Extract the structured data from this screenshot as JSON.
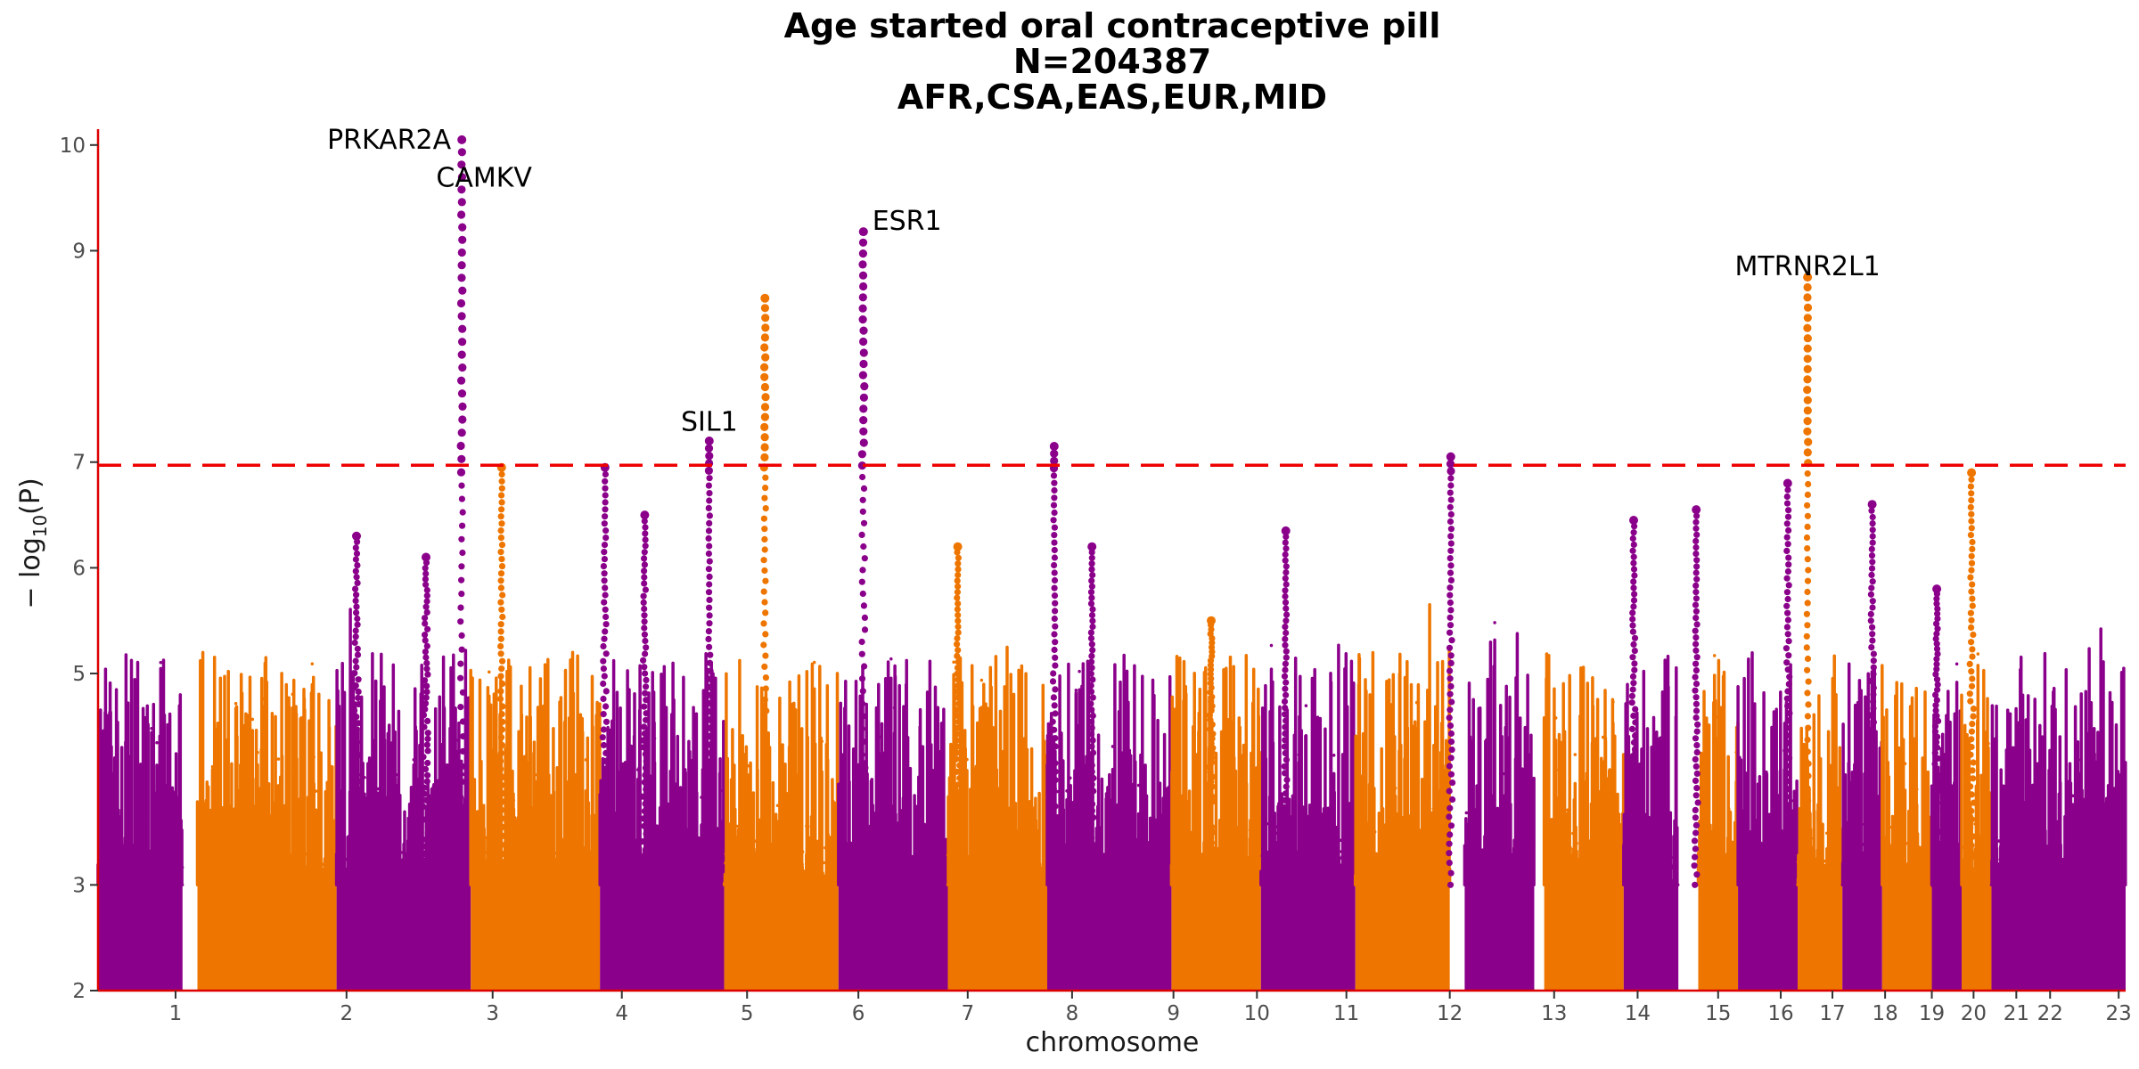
{
  "colors": {
    "purple": "#8b008b",
    "orange": "#ee7600",
    "axis": "#dd0000",
    "threshold": "#ee0000",
    "tick_text": "#4d4d4d"
  },
  "chart_data": {
    "type": "scatter",
    "title_lines": [
      "Age started oral contraceptive pill",
      "N=204387",
      "AFR,CSA,EAS,EUR,MID"
    ],
    "xlabel": "chromosome",
    "ylabel_main": "− log",
    "ylabel_sub": "10",
    "ylabel_tail": "(P)",
    "ylim": [
      2,
      10.15
    ],
    "y_ticks": [
      "2",
      "3",
      "5",
      "6",
      "7",
      "9",
      "10"
    ],
    "y_tick_values": [
      2,
      3,
      5,
      6,
      7,
      9,
      10
    ],
    "significance_threshold": 6.97,
    "grid": false,
    "chromosomes": [
      {
        "label": "1",
        "start": 0,
        "end": 0.85,
        "color": "purple"
      },
      {
        "label": "2",
        "start": 1.0,
        "end": 2.4,
        "color": "orange"
      },
      {
        "label": "3",
        "start": 2.4,
        "end": 3.75,
        "color": "purple"
      },
      {
        "label": "4",
        "start": 3.75,
        "end": 5.05,
        "color": "orange"
      },
      {
        "label": "5",
        "start": 5.05,
        "end": 6.3,
        "color": "purple"
      },
      {
        "label": "6",
        "start": 6.3,
        "end": 7.45,
        "color": "orange"
      },
      {
        "label": "7",
        "start": 7.45,
        "end": 8.55,
        "color": "purple"
      },
      {
        "label": "8",
        "start": 8.55,
        "end": 9.55,
        "color": "orange"
      },
      {
        "label": "9",
        "start": 9.55,
        "end": 10.8,
        "color": "purple"
      },
      {
        "label": "10",
        "start": 10.8,
        "end": 11.7,
        "color": "orange"
      },
      {
        "label": "11",
        "start": 11.7,
        "end": 12.65,
        "color": "purple"
      },
      {
        "label": "12",
        "start": 12.65,
        "end": 13.6,
        "color": "orange"
      },
      {
        "label": "13",
        "start": 13.75,
        "end": 14.45,
        "color": "purple"
      },
      {
        "label": "14",
        "start": 14.55,
        "end": 15.35,
        "color": "orange"
      },
      {
        "label": "15",
        "start": 15.35,
        "end": 15.9,
        "color": "purple"
      },
      {
        "label": "16",
        "start": 16.1,
        "end": 16.5,
        "color": "orange"
      },
      {
        "label": "17",
        "start": 16.5,
        "end": 17.1,
        "color": "purple"
      },
      {
        "label": "18",
        "start": 17.1,
        "end": 17.55,
        "color": "orange"
      },
      {
        "label": "19",
        "start": 17.55,
        "end": 17.95,
        "color": "purple"
      },
      {
        "label": "20",
        "start": 17.95,
        "end": 18.45,
        "color": "orange"
      },
      {
        "label": "21",
        "start": 18.45,
        "end": 18.75,
        "color": "purple"
      },
      {
        "label": "22",
        "start": 18.75,
        "end": 19.05,
        "color": "orange"
      },
      {
        "label": "23",
        "start": 19.05,
        "end": 20.4,
        "color": "purple"
      }
    ],
    "x_ticks": [
      {
        "label": "1",
        "pos": 0.78
      },
      {
        "label": "2",
        "pos": 2.5
      },
      {
        "label": "3",
        "pos": 3.97
      },
      {
        "label": "4",
        "pos": 5.27
      },
      {
        "label": "5",
        "pos": 6.53
      },
      {
        "label": "6",
        "pos": 7.65
      },
      {
        "label": "7",
        "pos": 8.75
      },
      {
        "label": "8",
        "pos": 9.8
      },
      {
        "label": "9",
        "pos": 10.82
      },
      {
        "label": "10",
        "pos": 11.66
      },
      {
        "label": "11",
        "pos": 12.56
      },
      {
        "label": "12",
        "pos": 13.6
      },
      {
        "label": "13",
        "pos": 14.65
      },
      {
        "label": "14",
        "pos": 15.49
      },
      {
        "label": "15",
        "pos": 16.3
      },
      {
        "label": "16",
        "pos": 16.93
      },
      {
        "label": "17",
        "pos": 17.45
      },
      {
        "label": "18",
        "pos": 17.98
      },
      {
        "label": "19",
        "pos": 18.45
      },
      {
        "label": "20",
        "pos": 18.87
      },
      {
        "label": "21",
        "pos": 19.3
      },
      {
        "label": "22",
        "pos": 19.64
      },
      {
        "label": "23",
        "pos": 20.33
      }
    ],
    "peaks": [
      {
        "x": 3.66,
        "ymax": 10.05,
        "w": 0.018
      },
      {
        "x": 4.06,
        "ymax": 6.95,
        "w": 0.02
      },
      {
        "x": 6.15,
        "ymax": 7.2,
        "w": 0.018
      },
      {
        "x": 6.71,
        "ymax": 8.55,
        "w": 0.022
      },
      {
        "x": 7.7,
        "ymax": 9.18,
        "w": 0.025
      },
      {
        "x": 9.62,
        "ymax": 7.15,
        "w": 0.02
      },
      {
        "x": 13.61,
        "ymax": 7.05,
        "w": 0.02
      },
      {
        "x": 17.2,
        "ymax": 8.75,
        "w": 0.012
      },
      {
        "x": 2.6,
        "ymax": 6.3,
        "w": 0.04
      },
      {
        "x": 3.3,
        "ymax": 6.1,
        "w": 0.04
      },
      {
        "x": 5.1,
        "ymax": 6.95,
        "w": 0.03
      },
      {
        "x": 5.5,
        "ymax": 6.5,
        "w": 0.03
      },
      {
        "x": 8.65,
        "ymax": 6.2,
        "w": 0.03
      },
      {
        "x": 10.0,
        "ymax": 6.2,
        "w": 0.02
      },
      {
        "x": 11.2,
        "ymax": 5.5,
        "w": 0.03
      },
      {
        "x": 11.95,
        "ymax": 6.35,
        "w": 0.02
      },
      {
        "x": 15.45,
        "ymax": 6.45,
        "w": 0.03
      },
      {
        "x": 16.08,
        "ymax": 6.55,
        "w": 0.02
      },
      {
        "x": 17.0,
        "ymax": 6.8,
        "w": 0.03
      },
      {
        "x": 17.85,
        "ymax": 6.6,
        "w": 0.03
      },
      {
        "x": 18.85,
        "ymax": 6.9,
        "w": 0.03
      },
      {
        "x": 18.5,
        "ymax": 5.8,
        "w": 0.03
      }
    ],
    "annotations": [
      {
        "text": "PRKAR2A",
        "x": 3.66,
        "y": 10.05,
        "anchor": "end"
      },
      {
        "text": "CAMKV",
        "x": 3.66,
        "y": 9.75,
        "anchor": "middle"
      },
      {
        "text": "ESR1",
        "x": 7.7,
        "y": 9.28,
        "anchor": "start"
      },
      {
        "text": "SIL1",
        "x": 6.15,
        "y": 7.38,
        "anchor": "middle"
      },
      {
        "text": "MTRNR2L1",
        "x": 17.2,
        "y": 8.85,
        "anchor": "middle"
      }
    ]
  }
}
